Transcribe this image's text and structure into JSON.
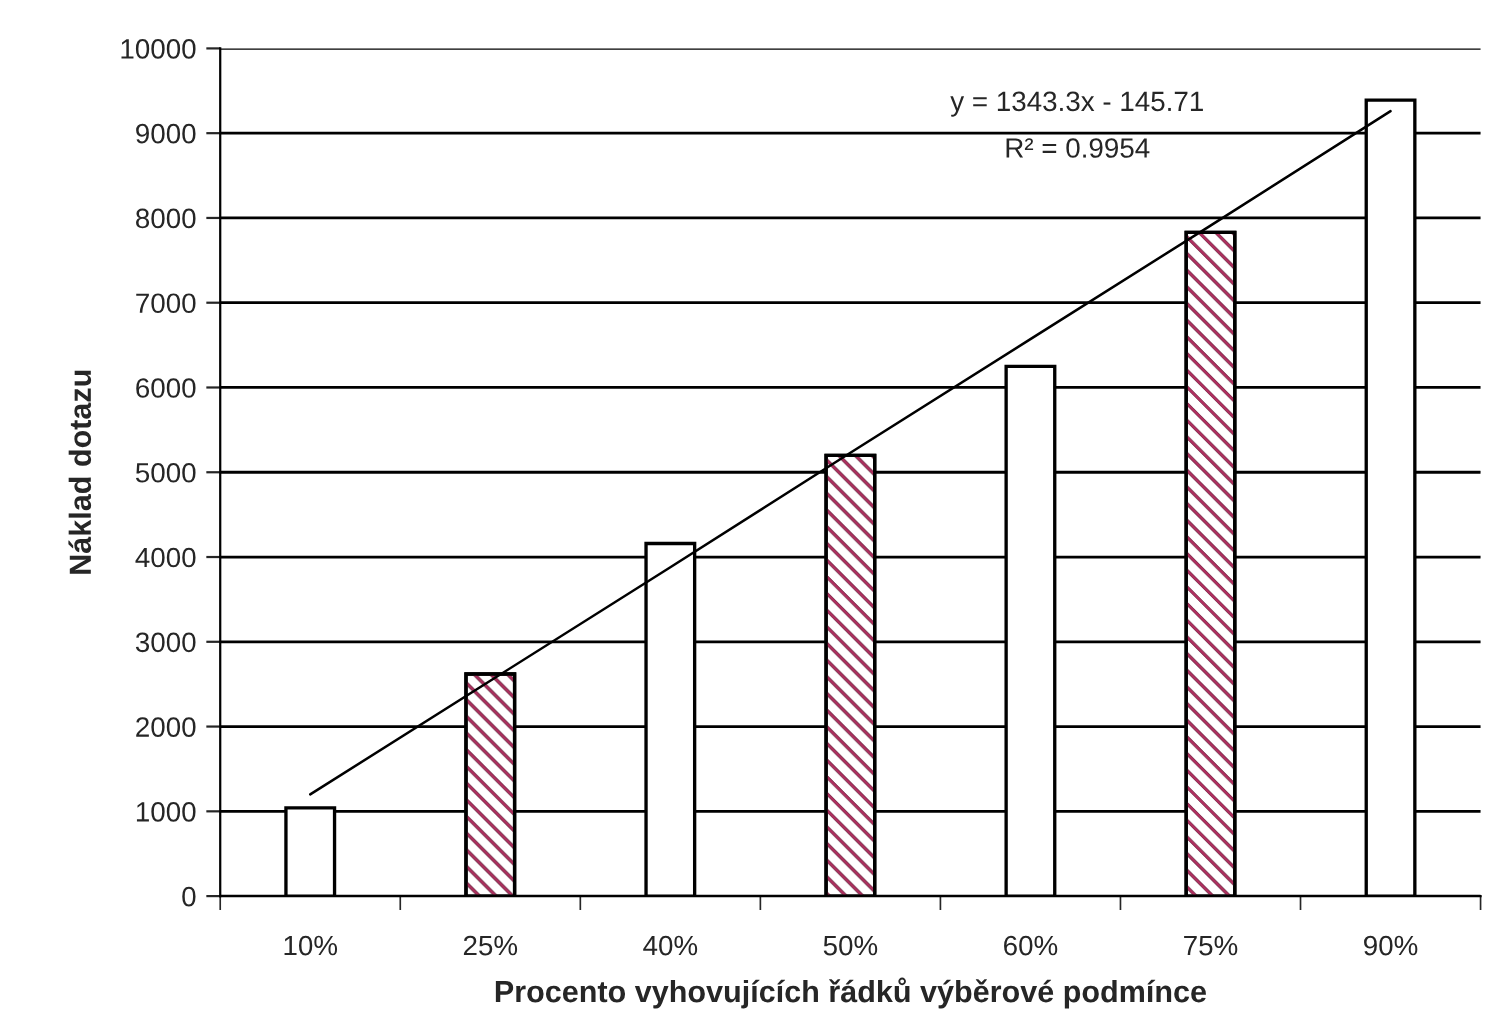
{
  "chart_data": {
    "type": "bar",
    "xlabel": "Procento vyhovujících řádků výběrové podmínce",
    "ylabel": "Náklad dotazu",
    "categories": [
      "10%",
      "25%",
      "40%",
      "50%",
      "60%",
      "75%",
      "90%"
    ],
    "series": [
      {
        "values": [
          1040,
          2620,
          4160,
          5200,
          6250,
          7830,
          9390
        ],
        "colors": [
          "#ffffff",
          "#b03060",
          "#ffffff",
          "#b03060",
          "#ffffff",
          "#b03060",
          "#ffffff"
        ]
      },
      {
        "type": "line",
        "color": "#000000",
        "values": [
          1200,
          2540,
          3880,
          5230,
          6570,
          7910,
          9260
        ]
      }
    ],
    "annotations": [
      "y = 1343.3x - 145.71",
      "R² = 0.9954"
    ],
    "ylim": [
      0,
      10000
    ],
    "yticks": [
      0,
      1000,
      2000,
      3000,
      4000,
      5000,
      6000,
      7000,
      8000,
      9000,
      10000
    ],
    "grid": "y",
    "legend": false
  }
}
